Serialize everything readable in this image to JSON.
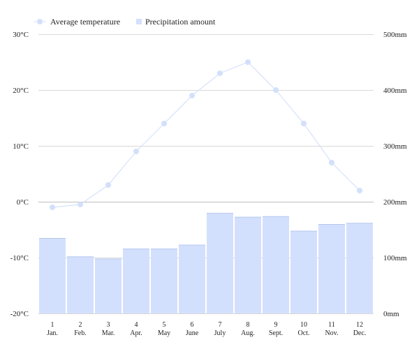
{
  "colors": {
    "temperature_line": "#d6e2fb",
    "temperature_point": "#d3e0fb",
    "precipitation_bar": "#d3e0fd",
    "gridline": "#d9d9d9",
    "zero_line": "#bdbdbd",
    "text": "#222222"
  },
  "chart_data": {
    "type": "bar",
    "categories": [
      "1",
      "2",
      "3",
      "4",
      "5",
      "6",
      "7",
      "8",
      "9",
      "10",
      "11",
      "12"
    ],
    "category_sublabels": [
      "Jan.",
      "Feb.",
      "Mar.",
      "Apr.",
      "May",
      "June",
      "July",
      "Aug.",
      "Sept.",
      "Oct.",
      "Nov.",
      "Dec."
    ],
    "legend": [
      "Average temperature",
      "Precipitation amount"
    ],
    "legend_position": "top-left",
    "grid": true,
    "series": [
      {
        "name": "Average temperature",
        "type": "line",
        "axis": "left",
        "values": [
          -1,
          -0.5,
          3,
          9,
          14,
          19,
          23,
          25,
          20,
          14,
          7,
          2
        ]
      },
      {
        "name": "Precipitation amount",
        "type": "bar",
        "axis": "right",
        "values": [
          135,
          102,
          98,
          116,
          116,
          123,
          180,
          173,
          174,
          148,
          160,
          162
        ]
      }
    ],
    "y_left": {
      "lim": [
        -20,
        30
      ],
      "ticks": [
        -20,
        -10,
        0,
        10,
        20,
        30
      ],
      "tick_labels": [
        "-20°C",
        "-10°C",
        "0°C",
        "10°C",
        "20°C",
        "30°C"
      ]
    },
    "y_right": {
      "lim": [
        0,
        500
      ],
      "ticks": [
        0,
        100,
        200,
        300,
        400,
        500
      ],
      "tick_labels": [
        "0mm",
        "100mm",
        "200mm",
        "300mm",
        "400mm",
        "500mm"
      ]
    }
  }
}
